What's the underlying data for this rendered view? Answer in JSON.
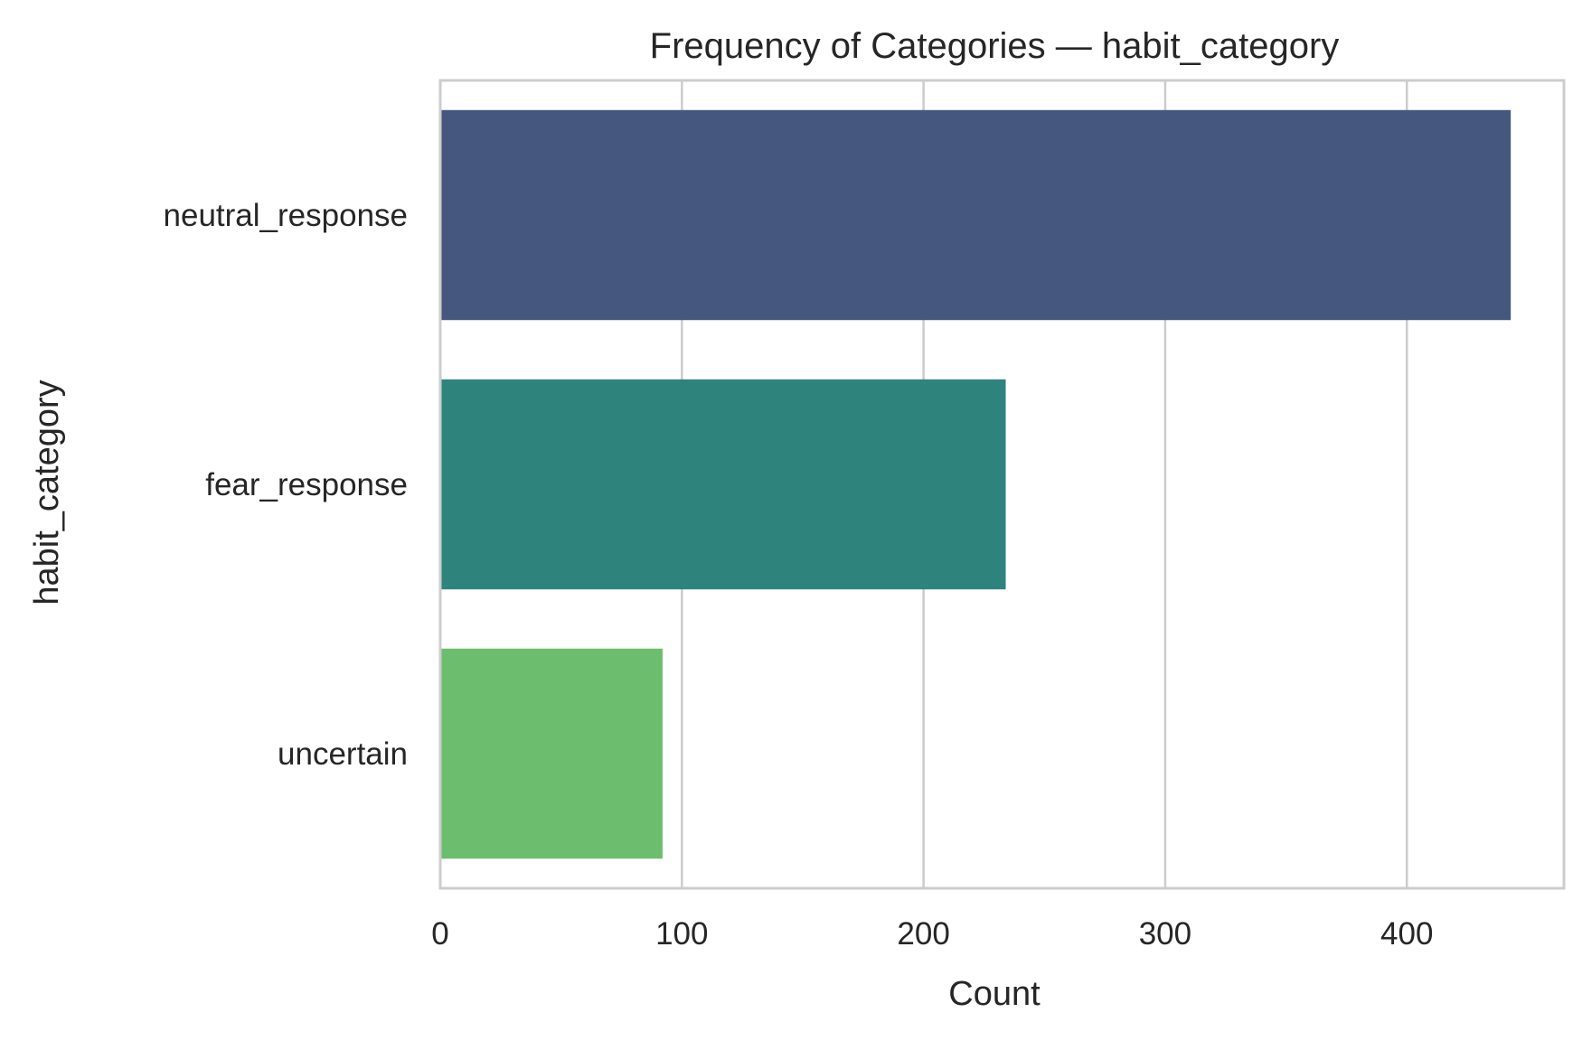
{
  "chart_data": {
    "type": "bar",
    "orientation": "horizontal",
    "title": "Frequency of Categories — habit_category",
    "xlabel": "Count",
    "ylabel": "habit_category",
    "categories": [
      "neutral_response",
      "fear_response",
      "uncertain"
    ],
    "values": [
      443,
      234,
      92
    ],
    "colors": [
      "#46577f",
      "#2e837d",
      "#6cbd6d"
    ],
    "xlim": [
      0,
      465
    ],
    "xticks": [
      0,
      100,
      200,
      300,
      400
    ],
    "xtick_labels": [
      "0",
      "100",
      "200",
      "300",
      "400"
    ],
    "grid": "x-axis vertical lines",
    "legend": "none"
  }
}
